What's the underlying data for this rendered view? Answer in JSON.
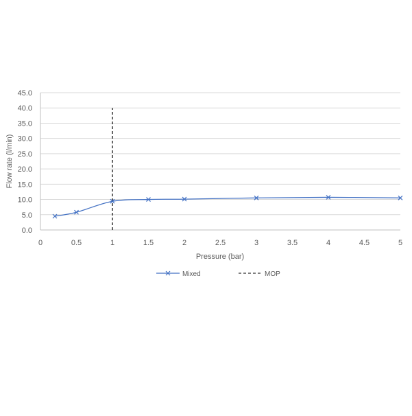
{
  "chart_data": {
    "type": "line",
    "title": "",
    "xlabel": "Pressure (bar)",
    "ylabel": "Flow rate (l/min)",
    "xlim": [
      0,
      5
    ],
    "ylim": [
      0,
      45
    ],
    "x_ticks": [
      "0",
      "0.5",
      "1",
      "1.5",
      "2",
      "2.5",
      "3",
      "3.5",
      "4",
      "4.5",
      "5"
    ],
    "y_ticks": [
      "0.0",
      "5.0",
      "10.0",
      "15.0",
      "20.0",
      "25.0",
      "30.0",
      "35.0",
      "40.0",
      "45.0"
    ],
    "grid": "horizontal",
    "legend_position": "bottom",
    "series": [
      {
        "name": "Mixed",
        "color": "#4472C4",
        "marker": "x",
        "smooth": true,
        "x": [
          0.2,
          0.5,
          1,
          1.5,
          2,
          3,
          4,
          5
        ],
        "y": [
          4.5,
          5.8,
          9.4,
          10.0,
          10.1,
          10.5,
          10.7,
          10.5
        ]
      },
      {
        "name": "MOP",
        "color": "#000000",
        "dashed": true,
        "x": [
          1,
          1
        ],
        "y": [
          0,
          40
        ]
      }
    ]
  }
}
